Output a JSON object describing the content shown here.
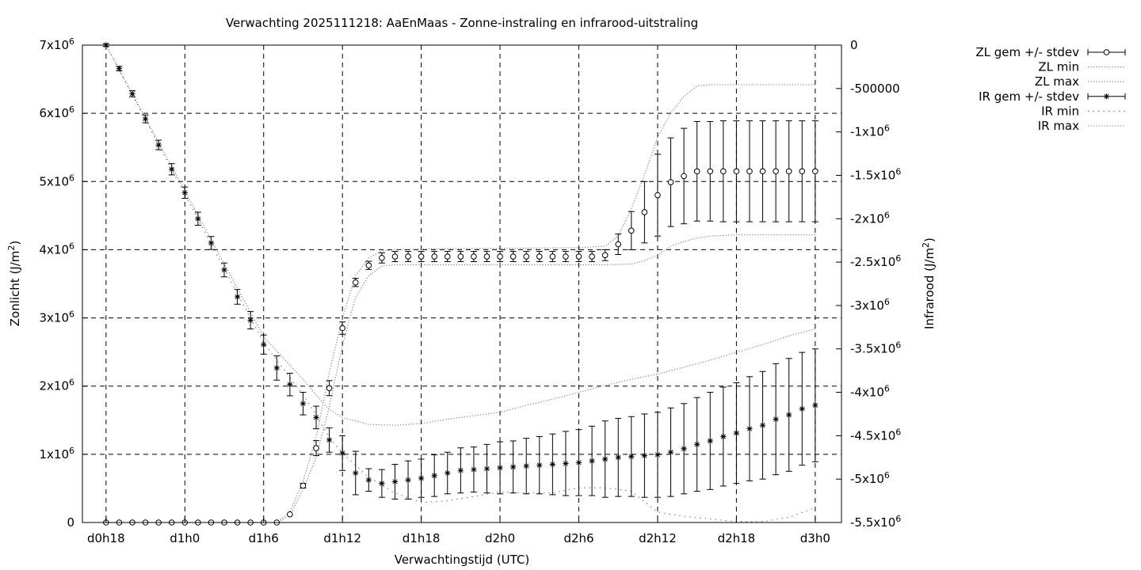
{
  "chart_data": {
    "type": "line",
    "title": "Verwachting 2025111218: AaEnMaas - Zonne-instraling en infrarood-uitstraling",
    "xlabel": "Verwachtingstijd (UTC)",
    "ylabel_left": "Zonlicht (J/m2)",
    "ylabel_right": "Infrarood (J/m2)",
    "y_left_ticks": [
      {
        "value": 0,
        "label": "0",
        "exp": ""
      },
      {
        "value": 1000000,
        "label": "1x10",
        "exp": "6"
      },
      {
        "value": 2000000,
        "label": "2x10",
        "exp": "6"
      },
      {
        "value": 3000000,
        "label": "3x10",
        "exp": "6"
      },
      {
        "value": 4000000,
        "label": "4x10",
        "exp": "6"
      },
      {
        "value": 5000000,
        "label": "5x10",
        "exp": "6"
      },
      {
        "value": 6000000,
        "label": "6x10",
        "exp": "6"
      },
      {
        "value": 7000000,
        "label": "7x10",
        "exp": "6"
      }
    ],
    "y_right_ticks": [
      {
        "value": 0,
        "label": "0",
        "exp": ""
      },
      {
        "value": -500000,
        "label": "-500000",
        "exp": ""
      },
      {
        "value": -1000000,
        "label": "-1x10",
        "exp": "6"
      },
      {
        "value": -1500000,
        "label": "-1.5x10",
        "exp": "6"
      },
      {
        "value": -2000000,
        "label": "-2x10",
        "exp": "6"
      },
      {
        "value": -2500000,
        "label": "-2.5x10",
        "exp": "6"
      },
      {
        "value": -3000000,
        "label": "-3x10",
        "exp": "6"
      },
      {
        "value": -3500000,
        "label": "-3.5x10",
        "exp": "6"
      },
      {
        "value": -4000000,
        "label": "-4x10",
        "exp": "6"
      },
      {
        "value": -4500000,
        "label": "-4.5x10",
        "exp": "6"
      },
      {
        "value": -5000000,
        "label": "-5x10",
        "exp": "6"
      },
      {
        "value": -5500000,
        "label": "-5.5x10",
        "exp": "6"
      }
    ],
    "x_ticks": [
      {
        "value": 0,
        "label": "d0h18"
      },
      {
        "value": 6,
        "label": "d1h0"
      },
      {
        "value": 12,
        "label": "d1h6"
      },
      {
        "value": 18,
        "label": "d1h12"
      },
      {
        "value": 24,
        "label": "d1h18"
      },
      {
        "value": 30,
        "label": "d2h0"
      },
      {
        "value": 36,
        "label": "d2h6"
      },
      {
        "value": 42,
        "label": "d2h12"
      },
      {
        "value": 48,
        "label": "d2h18"
      },
      {
        "value": 54,
        "label": "d3h0"
      }
    ],
    "xlim": [
      -1.8,
      56
    ],
    "ylim_left": [
      0,
      7000000
    ],
    "ylim_right": [
      -5500000,
      0
    ],
    "grid": true,
    "legend_position": "outside-right",
    "series": [
      {
        "name": "ZL gem +/- stdev",
        "axis": "left",
        "marker": "circle",
        "x": [
          0,
          1,
          2,
          3,
          4,
          5,
          6,
          7,
          8,
          9,
          10,
          11,
          12,
          13,
          14,
          15,
          16,
          17,
          18,
          19,
          20,
          21,
          22,
          23,
          24,
          25,
          26,
          27,
          28,
          29,
          30,
          31,
          32,
          33,
          34,
          35,
          36,
          37,
          38,
          39,
          40,
          41,
          42,
          43,
          44,
          45,
          46,
          47,
          48,
          49,
          50,
          51,
          52,
          53,
          54
        ],
        "values": [
          0,
          0,
          0,
          0,
          0,
          0,
          0,
          0,
          0,
          0,
          0,
          0,
          0,
          0,
          120000,
          540000,
          1090000,
          1970000,
          2850000,
          3520000,
          3770000,
          3880000,
          3900000,
          3900000,
          3900000,
          3900000,
          3900000,
          3900000,
          3900000,
          3900000,
          3900000,
          3900000,
          3900000,
          3900000,
          3900000,
          3900000,
          3900000,
          3900000,
          3920000,
          4080000,
          4280000,
          4550000,
          4800000,
          4990000,
          5080000,
          5150000,
          5150000,
          5150000,
          5150000,
          5150000,
          5150000,
          5150000,
          5150000,
          5150000,
          5150000
        ],
        "stdev": [
          0,
          0,
          0,
          0,
          0,
          0,
          0,
          0,
          0,
          0,
          0,
          0,
          0,
          0,
          0,
          35000,
          110000,
          110000,
          90000,
          60000,
          60000,
          75000,
          75000,
          75000,
          75000,
          75000,
          75000,
          75000,
          75000,
          75000,
          75000,
          75000,
          75000,
          75000,
          75000,
          75000,
          75000,
          75000,
          80000,
          150000,
          280000,
          450000,
          600000,
          650000,
          700000,
          730000,
          730000,
          740000,
          740000,
          740000,
          740000,
          740000,
          740000,
          740000,
          740000
        ]
      },
      {
        "name": "ZL min",
        "axis": "left",
        "line": "dotted",
        "x": [
          0,
          13,
          14,
          15,
          16,
          17,
          18,
          19,
          20,
          21,
          22,
          24,
          30,
          36,
          38,
          40,
          41,
          42,
          43,
          44,
          45,
          46,
          48,
          50,
          54
        ],
        "values": [
          0,
          0,
          100000,
          480000,
          950000,
          1700000,
          2600000,
          3300000,
          3620000,
          3760000,
          3780000,
          3780000,
          3780000,
          3780000,
          3780000,
          3790000,
          3840000,
          3920000,
          4050000,
          4120000,
          4170000,
          4200000,
          4220000,
          4220000,
          4220000
        ]
      },
      {
        "name": "ZL max",
        "axis": "left",
        "line": "dotted",
        "x": [
          0,
          13,
          14,
          15,
          16,
          17,
          18,
          19,
          20,
          21,
          22,
          24,
          30,
          36,
          38,
          39,
          40,
          41,
          42,
          43,
          44,
          45,
          46,
          48,
          50,
          54
        ],
        "values": [
          0,
          0,
          150000,
          600000,
          1250000,
          2200000,
          3000000,
          3620000,
          3880000,
          3980000,
          4000000,
          4010000,
          4020000,
          4030000,
          4050000,
          4200000,
          4600000,
          5100000,
          5650000,
          6000000,
          6250000,
          6400000,
          6420000,
          6420000,
          6420000,
          6420000
        ]
      },
      {
        "name": "IR gem +/- stdev",
        "axis": "right",
        "marker": "star",
        "x": [
          0,
          1,
          2,
          3,
          4,
          5,
          6,
          7,
          8,
          9,
          10,
          11,
          12,
          13,
          14,
          15,
          16,
          17,
          18,
          19,
          20,
          21,
          22,
          23,
          24,
          25,
          26,
          27,
          28,
          29,
          30,
          31,
          32,
          33,
          34,
          35,
          36,
          37,
          38,
          39,
          40,
          41,
          42,
          43,
          44,
          45,
          46,
          47,
          48,
          49,
          50,
          51,
          52,
          53,
          54
        ],
        "values": [
          0,
          -270000,
          -560000,
          -850000,
          -1150000,
          -1430000,
          -1700000,
          -2000000,
          -2280000,
          -2590000,
          -2900000,
          -3170000,
          -3450000,
          -3720000,
          -3910000,
          -4130000,
          -4290000,
          -4550000,
          -4700000,
          -4930000,
          -5010000,
          -5050000,
          -5030000,
          -5010000,
          -4990000,
          -4960000,
          -4930000,
          -4900000,
          -4890000,
          -4880000,
          -4870000,
          -4860000,
          -4850000,
          -4840000,
          -4830000,
          -4820000,
          -4810000,
          -4790000,
          -4770000,
          -4750000,
          -4740000,
          -4730000,
          -4720000,
          -4690000,
          -4650000,
          -4600000,
          -4560000,
          -4510000,
          -4470000,
          -4420000,
          -4380000,
          -4310000,
          -4260000,
          -4190000,
          -4150000
        ],
        "stdev": [
          15000,
          25000,
          35000,
          45000,
          55000,
          65000,
          65000,
          75000,
          75000,
          80000,
          85000,
          100000,
          110000,
          140000,
          130000,
          130000,
          130000,
          140000,
          200000,
          250000,
          130000,
          160000,
          200000,
          220000,
          220000,
          240000,
          240000,
          260000,
          260000,
          280000,
          300000,
          300000,
          320000,
          330000,
          350000,
          370000,
          380000,
          400000,
          440000,
          450000,
          460000,
          480000,
          490000,
          510000,
          520000,
          540000,
          560000,
          570000,
          580000,
          600000,
          620000,
          640000,
          650000,
          650000,
          650000
        ]
      },
      {
        "name": "IR min",
        "axis": "right",
        "line": "dotted",
        "x": [
          0,
          6,
          12,
          15,
          16,
          17,
          18,
          20,
          22,
          24,
          26,
          28,
          30,
          32,
          34,
          36,
          38,
          40,
          42,
          44,
          46,
          48,
          50,
          52,
          54
        ],
        "values": [
          0,
          -1720000,
          -3430000,
          -4030000,
          -4260000,
          -4520000,
          -4700000,
          -4980000,
          -5160000,
          -5270000,
          -5250000,
          -5200000,
          -5150000,
          -5160000,
          -5160000,
          -5100000,
          -5100000,
          -5140000,
          -5380000,
          -5430000,
          -5460000,
          -5490000,
          -5490000,
          -5440000,
          -5330000
        ]
      },
      {
        "name": "IR max",
        "axis": "right",
        "line": "dotted",
        "x": [
          0,
          6,
          12,
          15,
          16,
          17,
          18,
          20,
          22,
          24,
          26,
          28,
          30,
          32,
          34,
          36,
          38,
          40,
          42,
          44,
          46,
          48,
          50,
          52,
          54
        ],
        "values": [
          0,
          -1680000,
          -3360000,
          -3850000,
          -4030000,
          -4200000,
          -4290000,
          -4370000,
          -4380000,
          -4360000,
          -4310000,
          -4270000,
          -4230000,
          -4150000,
          -4080000,
          -4000000,
          -3920000,
          -3850000,
          -3790000,
          -3710000,
          -3630000,
          -3540000,
          -3450000,
          -3350000,
          -3270000
        ]
      }
    ]
  },
  "legend": {
    "items": [
      {
        "label": "ZL gem +/- stdev",
        "style": "errorbar-circle"
      },
      {
        "label": "ZL min",
        "style": "dotted-fine"
      },
      {
        "label": "ZL max",
        "style": "dotted-fine"
      },
      {
        "label": "IR gem +/- stdev",
        "style": "errorbar-star"
      },
      {
        "label": "IR min",
        "style": "dotted-coarse"
      },
      {
        "label": "IR max",
        "style": "dotted-fine"
      }
    ]
  }
}
